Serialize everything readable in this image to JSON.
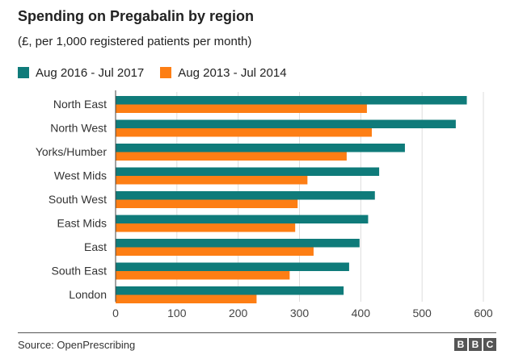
{
  "title": "Spending on Pregabalin by region",
  "subtitle": "(£, per 1,000 registered patients per month)",
  "source": "Source: OpenPrescribing",
  "logo": [
    "B",
    "B",
    "C"
  ],
  "legend": [
    {
      "label": "Aug 2016 - Jul 2017",
      "color": "#0f7b7a"
    },
    {
      "label": "Aug 2013 - Jul 2014",
      "color": "#fd7e14"
    }
  ],
  "chart_data": {
    "type": "bar",
    "orientation": "horizontal",
    "title": "Spending on Pregabalin by region",
    "subtitle": "(£, per 1,000 registered patients per month)",
    "xlabel": "",
    "ylabel": "",
    "xlim": [
      0,
      600
    ],
    "ticks": [
      0,
      100,
      200,
      300,
      400,
      500,
      600
    ],
    "grid": true,
    "categories": [
      "North East",
      "North West",
      "Yorks/Humber",
      "West Mids",
      "South West",
      "East Mids",
      "East",
      "South East",
      "London"
    ],
    "series": [
      {
        "name": "Aug 2016 - Jul 2017",
        "color": "#0f7b7a",
        "values": [
          573,
          555,
          472,
          430,
          423,
          412,
          398,
          381,
          372
        ]
      },
      {
        "name": "Aug 2013 - Jul 2014",
        "color": "#fd7e14",
        "values": [
          410,
          418,
          377,
          313,
          297,
          293,
          323,
          284,
          230
        ]
      }
    ]
  }
}
